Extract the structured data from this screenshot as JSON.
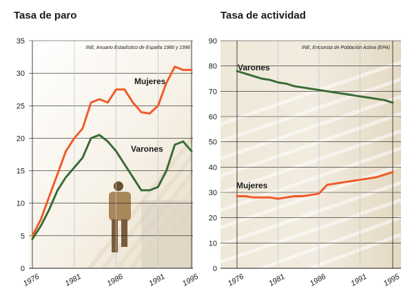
{
  "chart_data": [
    {
      "type": "line",
      "title": "Tasa de paro",
      "source": "INE, Anuario Estadístico de España 1986 y 1996",
      "xlim": [
        1976,
        1995
      ],
      "ylim": [
        0,
        35
      ],
      "yticks": [
        0,
        5,
        10,
        15,
        20,
        25,
        30,
        35
      ],
      "xticks": [
        1976,
        1981,
        1986,
        1991,
        1995
      ],
      "grid": true,
      "colors": {
        "Mujeres": "#f05a28",
        "Varones": "#3a6b35"
      },
      "series": [
        {
          "name": "Mujeres",
          "x": [
            1976,
            1977,
            1978,
            1979,
            1980,
            1981,
            1982,
            1983,
            1984,
            1985,
            1986,
            1987,
            1988,
            1989,
            1990,
            1991,
            1992,
            1993,
            1994,
            1995
          ],
          "y": [
            5.0,
            7.5,
            11.0,
            14.5,
            18.0,
            20.0,
            21.5,
            25.5,
            26.0,
            25.5,
            27.5,
            27.5,
            25.5,
            24.0,
            23.8,
            25.0,
            28.5,
            31.0,
            30.5,
            30.5
          ]
        },
        {
          "name": "Varones",
          "x": [
            1976,
            1977,
            1978,
            1979,
            1980,
            1981,
            1982,
            1983,
            1984,
            1985,
            1986,
            1987,
            1988,
            1989,
            1990,
            1991,
            1992,
            1993,
            1994,
            1995
          ],
          "y": [
            4.5,
            6.5,
            9.0,
            12.0,
            14.0,
            15.5,
            17.0,
            20.0,
            20.5,
            19.5,
            18.0,
            16.0,
            14.0,
            12.0,
            12.0,
            12.5,
            15.0,
            19.0,
            19.5,
            18.0
          ]
        }
      ]
    },
    {
      "type": "line",
      "title": "Tasa de actividad",
      "source": "INE, Encuesta de Población Activa (EPA)",
      "xlim": [
        1976,
        1995
      ],
      "ylim": [
        0,
        90
      ],
      "yticks": [
        0,
        10,
        20,
        30,
        40,
        50,
        60,
        70,
        80,
        90
      ],
      "xticks": [
        1976,
        1981,
        1986,
        1991,
        1995
      ],
      "grid": true,
      "colors": {
        "Mujeres": "#f05a28",
        "Varones": "#3a6b35"
      },
      "series": [
        {
          "name": "Varones",
          "x": [
            1976,
            1977,
            1978,
            1979,
            1980,
            1981,
            1982,
            1983,
            1984,
            1985,
            1986,
            1987,
            1988,
            1989,
            1990,
            1991,
            1992,
            1993,
            1994,
            1995
          ],
          "y": [
            78.0,
            77.0,
            76.0,
            75.0,
            74.5,
            73.5,
            73.0,
            72.0,
            71.5,
            71.0,
            70.5,
            70.0,
            69.5,
            69.0,
            68.5,
            68.0,
            67.5,
            67.0,
            66.5,
            65.5
          ]
        },
        {
          "name": "Mujeres",
          "x": [
            1976,
            1977,
            1978,
            1979,
            1980,
            1981,
            1982,
            1983,
            1984,
            1985,
            1986,
            1987,
            1988,
            1989,
            1990,
            1991,
            1992,
            1993,
            1994,
            1995
          ],
          "y": [
            28.5,
            28.5,
            28.0,
            28.0,
            28.0,
            27.5,
            28.0,
            28.5,
            28.5,
            29.0,
            29.5,
            33.0,
            33.5,
            34.0,
            34.5,
            35.0,
            35.5,
            36.0,
            37.0,
            38.0
          ]
        }
      ]
    }
  ]
}
